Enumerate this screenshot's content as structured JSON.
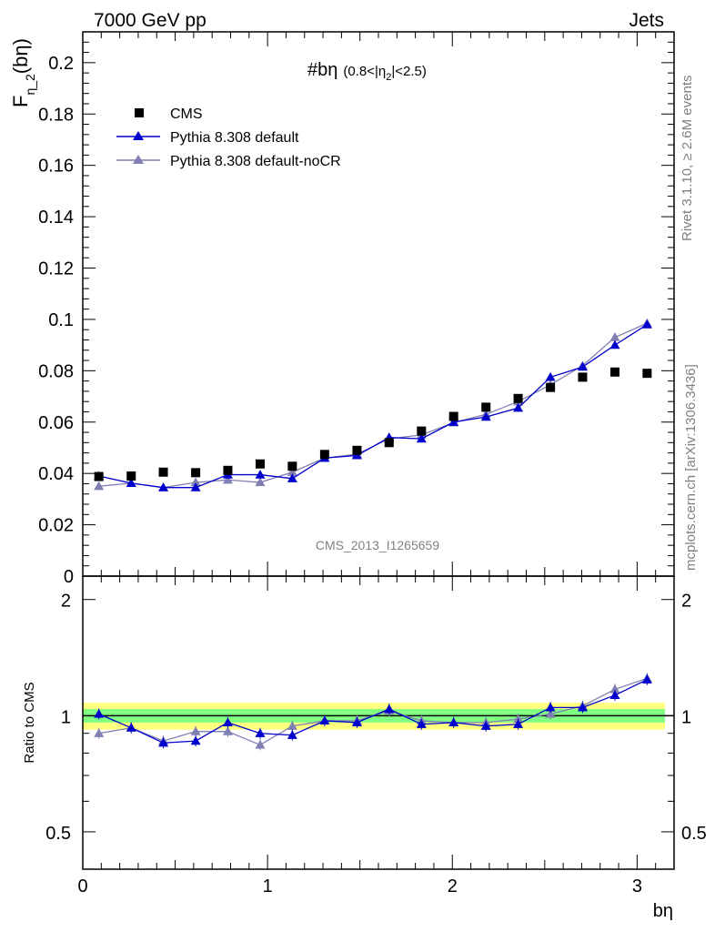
{
  "header": {
    "left": "7000 GeV pp",
    "right": "Jets"
  },
  "side": {
    "rivet": "Rivet 3.1.10, ≥ 2.6M events",
    "mcplots": "mcplots.cern.ch [arXiv:1306.3436]"
  },
  "colors": {
    "cms": "#000000",
    "default": "#0000cc",
    "noCR": "#7f7fb2",
    "band_inner": "#80ff80",
    "band_outer": "#ffff80"
  },
  "chart_data": [
    {
      "type": "scatter",
      "title": "#bη (0.8<|η_2|<2.5)",
      "title_main": "#bη",
      "title_sub": "(0.8<|η",
      "title_sub_index": "2",
      "title_sub_end": "|<2.5)",
      "ylabel": "F",
      "ylabel_sub": "η_2",
      "ylabel_end": "(bη)",
      "xlabel": "bη",
      "watermark": "CMS_2013_I1265659",
      "xlim": [
        0,
        3.2
      ],
      "ylim": [
        0,
        0.212
      ],
      "yticks": [
        0,
        0.02,
        0.04,
        0.06,
        0.08,
        0.1,
        0.12,
        0.14,
        0.16,
        0.18,
        0.2
      ],
      "ytick_labels": [
        "0",
        "0.02",
        "0.04",
        "0.06",
        "0.08",
        "0.1",
        "0.12",
        "0.14",
        "0.16",
        "0.18",
        "0.2"
      ],
      "x": [
        0.087,
        0.262,
        0.436,
        0.611,
        0.785,
        0.96,
        1.134,
        1.309,
        1.484,
        1.658,
        1.833,
        2.007,
        2.182,
        2.356,
        2.531,
        2.705,
        2.88,
        3.054
      ],
      "series": [
        {
          "name": "CMS",
          "marker": "square",
          "values": [
            0.0388,
            0.039,
            0.0405,
            0.0403,
            0.0412,
            0.0437,
            0.0428,
            0.0474,
            0.049,
            0.052,
            0.0565,
            0.0622,
            0.0658,
            0.0692,
            0.0735,
            0.0775,
            0.0795,
            0.079
          ]
        },
        {
          "name": "Pythia 8.308 default",
          "marker": "triangle",
          "values": [
            0.039,
            0.0362,
            0.0345,
            0.0345,
            0.0395,
            0.0395,
            0.038,
            0.046,
            0.047,
            0.054,
            0.0535,
            0.06,
            0.062,
            0.0655,
            0.0775,
            0.0815,
            0.09,
            0.098
          ]
        },
        {
          "name": "Pythia 8.308 default-noCR",
          "marker": "triangle",
          "values": [
            0.035,
            0.0362,
            0.0345,
            0.0365,
            0.0375,
            0.0365,
            0.0405,
            0.046,
            0.0475,
            0.0535,
            0.055,
            0.0598,
            0.063,
            0.068,
            0.0745,
            0.082,
            0.093,
            0.0985
          ]
        }
      ]
    },
    {
      "type": "line",
      "ylabel": "Ratio to CMS",
      "xlabel": "bη",
      "xlim": [
        0,
        3.2
      ],
      "ylim": [
        0.4,
        2.3
      ],
      "yscale": "log",
      "yticks": [
        0.5,
        1,
        2
      ],
      "ytick_labels": [
        "0.5",
        "1",
        "2"
      ],
      "xticks": [
        0,
        1,
        2,
        3
      ],
      "xtick_labels": [
        "0",
        "1",
        "2",
        "3"
      ],
      "band_inner_halfwidth": 0.04,
      "band_outer_halfwidth": 0.08,
      "series": [
        {
          "name": "Pythia 8.308 default",
          "values": [
            1.01,
            0.93,
            0.85,
            0.86,
            0.96,
            0.9,
            0.89,
            0.97,
            0.96,
            1.04,
            0.95,
            0.96,
            0.94,
            0.95,
            1.05,
            1.05,
            1.13,
            1.24
          ]
        },
        {
          "name": "Pythia 8.308 default-noCR",
          "values": [
            0.9,
            0.93,
            0.86,
            0.91,
            0.91,
            0.84,
            0.94,
            0.97,
            0.97,
            1.03,
            0.97,
            0.96,
            0.96,
            0.98,
            1.01,
            1.06,
            1.17,
            1.25
          ]
        }
      ]
    }
  ]
}
